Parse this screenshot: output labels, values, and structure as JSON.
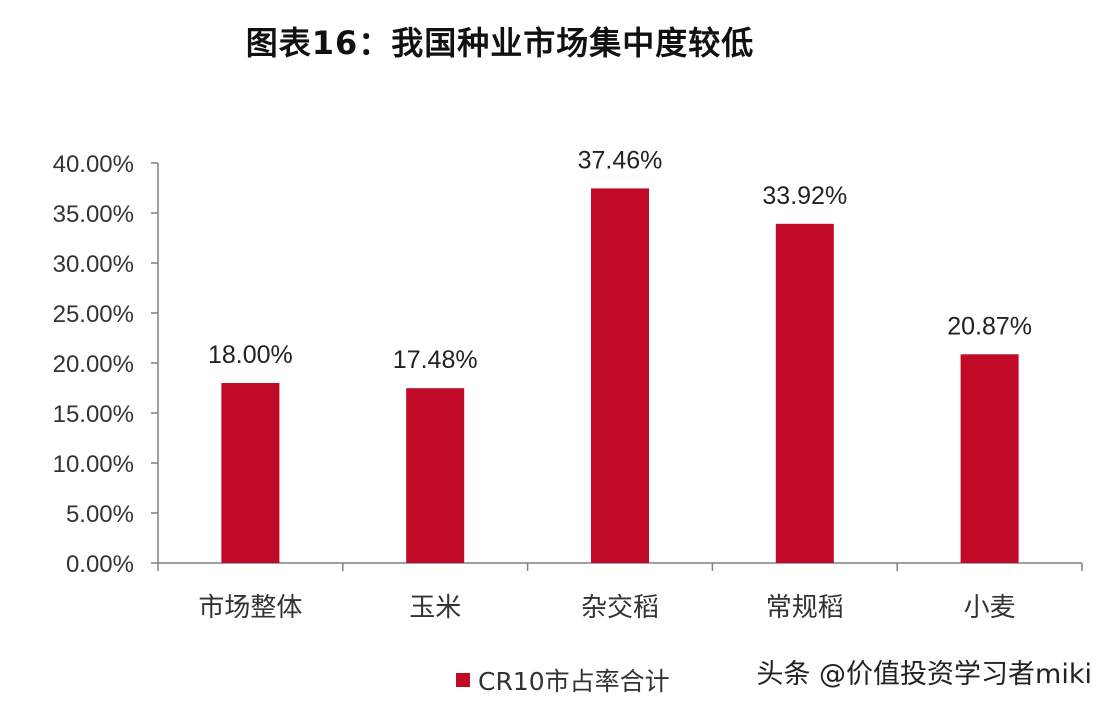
{
  "chart_data": {
    "type": "bar",
    "title": "图表16：我国种业市场集中度较低",
    "categories": [
      "市场整体",
      "玉米",
      "杂交稻",
      "常规稻",
      "小麦"
    ],
    "series": [
      {
        "name": "CR10市占率合计",
        "values": [
          18.0,
          17.48,
          37.46,
          33.92,
          20.87
        ],
        "data_labels": [
          "18.00%",
          "17.48%",
          "37.46%",
          "33.92%",
          "20.87%"
        ]
      }
    ],
    "yticks": [
      "0.00%",
      "5.00%",
      "10.00%",
      "15.00%",
      "20.00%",
      "25.00%",
      "30.00%",
      "35.00%",
      "40.00%"
    ],
    "ylim": [
      0,
      40
    ],
    "grid": false,
    "legend_position": "bottom",
    "bar_color": "#c00a27"
  },
  "watermark": "头条 @价值投资学习者miki"
}
